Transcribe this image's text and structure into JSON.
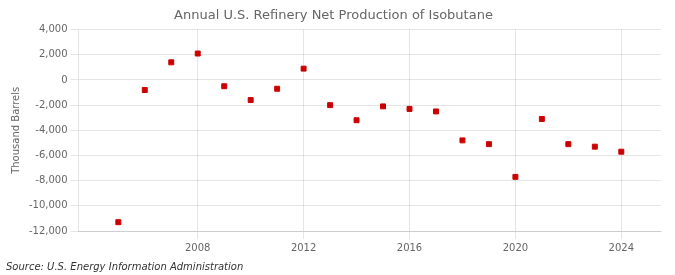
{
  "chart_data": {
    "type": "scatter",
    "title": "Annual U.S. Refinery Net Production of Isobutane",
    "ylabel": "Thousand Barrels",
    "annotation": "Source: U.S. Energy Information Administration",
    "x": [
      2005,
      2006,
      2007,
      2008,
      2009,
      2010,
      2011,
      2012,
      2013,
      2014,
      2015,
      2016,
      2017,
      2018,
      2019,
      2020,
      2021,
      2022,
      2023,
      2024
    ],
    "values": [
      -11300,
      -800,
      1400,
      2100,
      -500,
      -1600,
      -700,
      900,
      -2000,
      -3200,
      -2100,
      -2300,
      -2500,
      -4800,
      -5100,
      -7700,
      -3100,
      -5100,
      -5300,
      -5700
    ],
    "color": "#cc0000",
    "marker": "square",
    "xlim": [
      2003.5,
      2025.5
    ],
    "xticks": [
      2008,
      2012,
      2016,
      2020,
      2024
    ],
    "ylim": [
      -12000,
      4000
    ],
    "yticks": [
      {
        "value": -12000,
        "label": "-12,000"
      },
      {
        "value": -10000,
        "label": "-10,000"
      },
      {
        "value": -8000,
        "label": "-8,000"
      },
      {
        "value": -6000,
        "label": "-6,000"
      },
      {
        "value": -4000,
        "label": "-4,000"
      },
      {
        "value": -2000,
        "label": "-2,000"
      },
      0,
      {
        "value": 2000,
        "label": "2,000"
      },
      {
        "value": 4000,
        "label": "4,000"
      }
    ],
    "grid": true
  }
}
